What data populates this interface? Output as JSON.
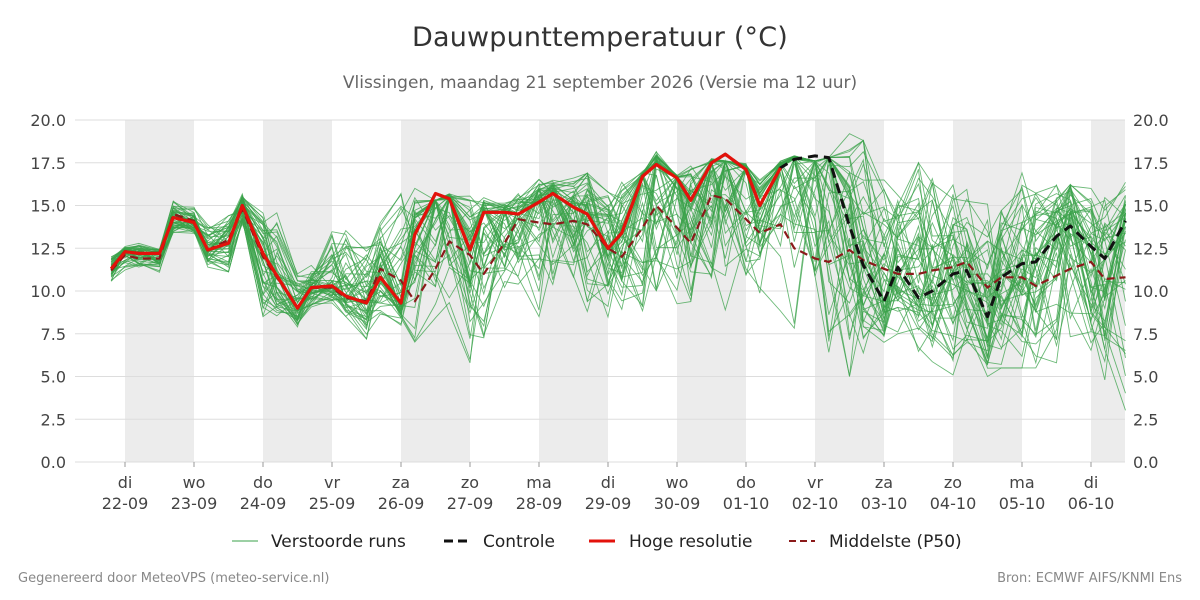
{
  "chart_data": {
    "type": "line",
    "title": "Dauwpunttemperatuur (°C)",
    "subtitle": "Vlissingen, maandag 21 september 2026 (Versie ma 12 uur)",
    "ylim": [
      0,
      20
    ],
    "yticks": [
      "0.0",
      "2.5",
      "5.0",
      "7.5",
      "10.0",
      "12.5",
      "15.0",
      "17.5",
      "20.0"
    ],
    "xlim": [
      -0.2,
      14.5
    ],
    "grid": true,
    "legend_position": "bottom",
    "x_day_labels": [
      {
        "day": "di",
        "date": "22-09"
      },
      {
        "day": "wo",
        "date": "23-09"
      },
      {
        "day": "do",
        "date": "24-09"
      },
      {
        "day": "vr",
        "date": "25-09"
      },
      {
        "day": "za",
        "date": "26-09"
      },
      {
        "day": "zo",
        "date": "27-09"
      },
      {
        "day": "ma",
        "date": "28-09"
      },
      {
        "day": "di",
        "date": "29-09"
      },
      {
        "day": "wo",
        "date": "30-09"
      },
      {
        "day": "do",
        "date": "01-10"
      },
      {
        "day": "vr",
        "date": "02-10"
      },
      {
        "day": "za",
        "date": "03-10"
      },
      {
        "day": "zo",
        "date": "04-10"
      },
      {
        "day": "ma",
        "date": "05-10"
      },
      {
        "day": "di",
        "date": "06-10"
      }
    ],
    "shaded_days": [
      0,
      2,
      4,
      6,
      8,
      10,
      12,
      14
    ],
    "series": [
      {
        "name": "Controle",
        "color": "#111111",
        "style": "dashed",
        "x": [
          -0.2,
          0.0,
          0.2,
          0.5,
          0.7,
          1.0,
          1.2,
          1.5,
          1.7,
          2.0,
          2.2,
          2.5,
          2.7,
          3.0,
          3.2,
          3.5,
          3.7,
          4.0,
          4.2,
          4.5,
          4.7,
          5.0,
          5.2,
          5.5,
          5.7,
          6.0,
          6.2,
          6.5,
          6.7,
          7.0,
          7.2,
          7.5,
          7.7,
          8.0,
          8.2,
          8.5,
          8.7,
          9.0,
          9.2,
          9.5,
          9.7,
          10.0,
          10.2,
          10.5,
          10.7,
          11.0,
          11.2,
          11.5,
          11.7,
          12.0,
          12.2,
          12.5,
          12.7,
          13.0,
          13.2,
          13.5,
          13.7,
          14.0,
          14.2,
          14.5
        ],
        "values": [
          11.3,
          12.3,
          12.2,
          12.2,
          14.3,
          14.0,
          12.4,
          12.8,
          15.0,
          12.2,
          10.9,
          9.0,
          10.2,
          10.3,
          9.7,
          9.3,
          10.8,
          9.3,
          13.3,
          15.7,
          15.4,
          12.4,
          14.6,
          14.6,
          14.5,
          15.2,
          15.7,
          14.9,
          14.5,
          12.5,
          13.4,
          16.7,
          17.4,
          16.6,
          15.3,
          17.5,
          18.0,
          17.1,
          15.0,
          17.2,
          17.7,
          17.9,
          17.8,
          13.8,
          11.5,
          9.4,
          11.4,
          9.6,
          10.0,
          11.0,
          11.2,
          8.5,
          10.8,
          11.6,
          11.7,
          13.2,
          13.8,
          12.6,
          11.9,
          14.1
        ]
      },
      {
        "name": "Hoge resolutie",
        "color": "#e3120b",
        "style": "solid",
        "x": [
          -0.2,
          0.0,
          0.2,
          0.5,
          0.7,
          1.0,
          1.2,
          1.5,
          1.7,
          2.0,
          2.2,
          2.5,
          2.7,
          3.0,
          3.2,
          3.5,
          3.7,
          4.0,
          4.2,
          4.5,
          4.7,
          5.0,
          5.2,
          5.5,
          5.7,
          6.0,
          6.2,
          6.5,
          6.7,
          7.0,
          7.2,
          7.5,
          7.7,
          8.0,
          8.2,
          8.5,
          8.7,
          9.0,
          9.2,
          9.5
        ],
        "values": [
          11.3,
          12.3,
          12.2,
          12.2,
          14.3,
          14.0,
          12.4,
          12.8,
          15.0,
          12.2,
          10.9,
          9.0,
          10.2,
          10.3,
          9.7,
          9.3,
          10.8,
          9.3,
          13.3,
          15.7,
          15.4,
          12.4,
          14.6,
          14.6,
          14.5,
          15.2,
          15.7,
          14.9,
          14.5,
          12.5,
          13.4,
          16.7,
          17.4,
          16.6,
          15.3,
          17.5,
          18.0,
          17.1,
          15.0,
          17.2
        ]
      },
      {
        "name": "Middelste (P50)",
        "color": "#8b1a1a",
        "style": "dashed",
        "x": [
          -0.2,
          0.0,
          0.2,
          0.5,
          0.7,
          1.0,
          1.2,
          1.5,
          1.7,
          2.0,
          2.2,
          2.5,
          2.7,
          3.0,
          3.2,
          3.5,
          3.7,
          4.0,
          4.2,
          4.5,
          4.7,
          5.0,
          5.2,
          5.5,
          5.7,
          6.0,
          6.2,
          6.5,
          6.7,
          7.0,
          7.2,
          7.5,
          7.7,
          8.0,
          8.2,
          8.5,
          8.7,
          9.0,
          9.2,
          9.5,
          9.7,
          10.0,
          10.2,
          10.5,
          10.7,
          11.0,
          11.2,
          11.5,
          11.7,
          12.0,
          12.2,
          12.5,
          12.7,
          13.0,
          13.2,
          13.5,
          13.7,
          14.0,
          14.2,
          14.5
        ],
        "values": [
          11.2,
          12.1,
          11.9,
          11.9,
          14.5,
          14.1,
          12.4,
          13.0,
          14.8,
          12.0,
          10.8,
          9.0,
          10.2,
          10.2,
          9.6,
          9.4,
          11.3,
          10.6,
          9.4,
          11.3,
          12.9,
          12.1,
          11.0,
          12.8,
          14.2,
          14.0,
          13.9,
          14.1,
          13.9,
          12.5,
          12.0,
          13.7,
          15.0,
          13.7,
          12.8,
          15.6,
          15.4,
          14.2,
          13.4,
          13.9,
          12.5,
          11.9,
          11.7,
          12.4,
          11.8,
          11.3,
          11.0,
          11.0,
          11.2,
          11.4,
          11.7,
          10.2,
          10.8,
          10.8,
          10.3,
          10.9,
          11.3,
          11.7,
          10.7,
          10.8
        ]
      },
      {
        "name": "Verstoorde runs",
        "color": "#3aa24a",
        "style": "thin",
        "ensemble_members": 50,
        "x": [
          -0.2,
          0.0,
          0.2,
          0.5,
          0.7,
          1.0,
          1.2,
          1.5,
          1.7,
          2.0,
          2.2,
          2.5,
          2.7,
          3.0,
          3.2,
          3.5,
          3.7,
          4.0,
          4.2,
          4.5,
          4.7,
          5.0,
          5.2,
          5.5,
          5.7,
          6.0,
          6.2,
          6.5,
          6.7,
          7.0,
          7.2,
          7.5,
          7.7,
          8.0,
          8.2,
          8.5,
          8.7,
          9.0,
          9.2,
          9.5,
          9.7,
          10.0,
          10.2,
          10.5,
          10.7,
          11.0,
          11.2,
          11.5,
          11.7,
          12.0,
          12.2,
          12.5,
          12.7,
          13.0,
          13.2,
          13.5,
          13.7,
          14.0,
          14.2,
          14.5
        ],
        "band_low": [
          10.5,
          11.2,
          11.3,
          11.1,
          13.3,
          13.3,
          11.4,
          11.0,
          13.8,
          8.5,
          8.5,
          7.8,
          8.9,
          9.3,
          8.5,
          7.2,
          8.5,
          8.0,
          6.2,
          7.5,
          8.5,
          5.8,
          6.2,
          8.5,
          10.0,
          8.5,
          8.8,
          9.5,
          8.8,
          7.8,
          8.5,
          7.0,
          8.5,
          9.0,
          8.5,
          9.0,
          8.5,
          9.0,
          9.5,
          8.5,
          7.8,
          7.0,
          5.8,
          4.5,
          6.0,
          7.0,
          7.5,
          6.0,
          5.5,
          4.8,
          6.5,
          5.0,
          5.5,
          5.5,
          5.5,
          3.6,
          5.3,
          5.3,
          4.8,
          2.7
        ],
        "band_high": [
          12.0,
          12.6,
          12.8,
          12.5,
          15.3,
          14.9,
          14.2,
          14.6,
          15.7,
          15.2,
          14.9,
          11.0,
          11.5,
          14.5,
          14.0,
          12.9,
          14.0,
          15.7,
          16.0,
          15.3,
          15.7,
          16.2,
          15.6,
          15.2,
          16.0,
          16.7,
          16.5,
          16.6,
          16.9,
          16.5,
          16.4,
          17.0,
          18.2,
          16.8,
          18.0,
          17.8,
          17.6,
          17.5,
          16.8,
          17.6,
          17.9,
          17.6,
          17.8,
          19.2,
          18.8,
          16.5,
          15.6,
          17.5,
          17.2,
          16.8,
          16.5,
          17.0,
          16.5,
          17.9,
          16.5,
          16.3,
          17.3,
          16.0,
          16.7,
          16.6
        ]
      }
    ]
  },
  "legend": [
    {
      "key": "perturbed",
      "label": "Verstoorde runs"
    },
    {
      "key": "control",
      "label": "Controle"
    },
    {
      "key": "hires",
      "label": "Hoge resolutie"
    },
    {
      "key": "median",
      "label": "Middelste (P50)"
    }
  ],
  "footer": {
    "left": "Gegenereerd door MeteoVPS (meteo-service.nl)",
    "right": "Bron: ECMWF AIFS/KNMI Ens"
  },
  "colors": {
    "shade": "#ececec",
    "grid": "#dddddd",
    "ensemble": "#3aa24a",
    "hires": "#e3120b",
    "control": "#111111",
    "median": "#8b1a1a"
  }
}
